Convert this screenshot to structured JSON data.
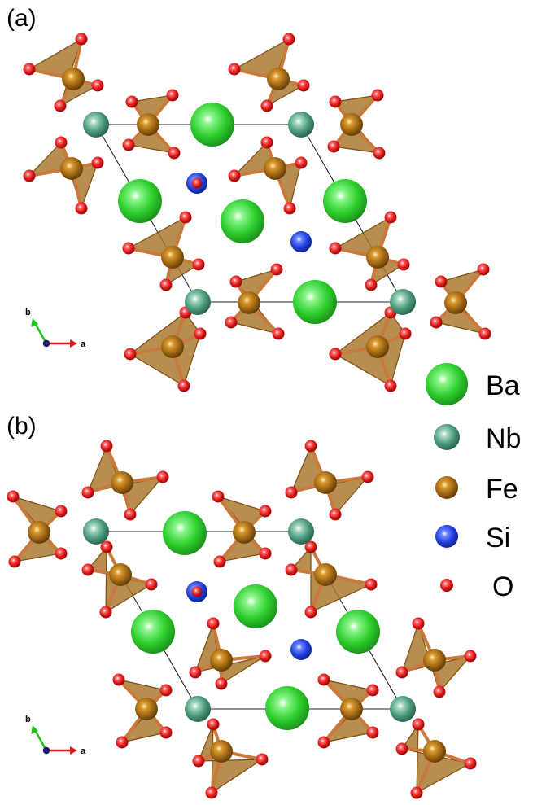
{
  "panels": [
    {
      "label": "(a)",
      "axes": {
        "x": "a",
        "y": "b"
      }
    },
    {
      "label": "(b)",
      "axes": {
        "x": "a",
        "y": "b"
      }
    }
  ],
  "legend": [
    {
      "symbol": "Ba",
      "color": "#3fd63f",
      "name_icon": "ba-atom-icon"
    },
    {
      "symbol": "Nb",
      "color": "#4a9a7a",
      "name_icon": "nb-atom-icon"
    },
    {
      "symbol": "Fe",
      "color": "#b8741a",
      "name_icon": "fe-atom-icon"
    },
    {
      "symbol": "Si",
      "color": "#2040e0",
      "name_icon": "si-atom-icon"
    },
    {
      "symbol": "O",
      "color": "#e01818",
      "name_icon": "o-atom-icon"
    }
  ]
}
